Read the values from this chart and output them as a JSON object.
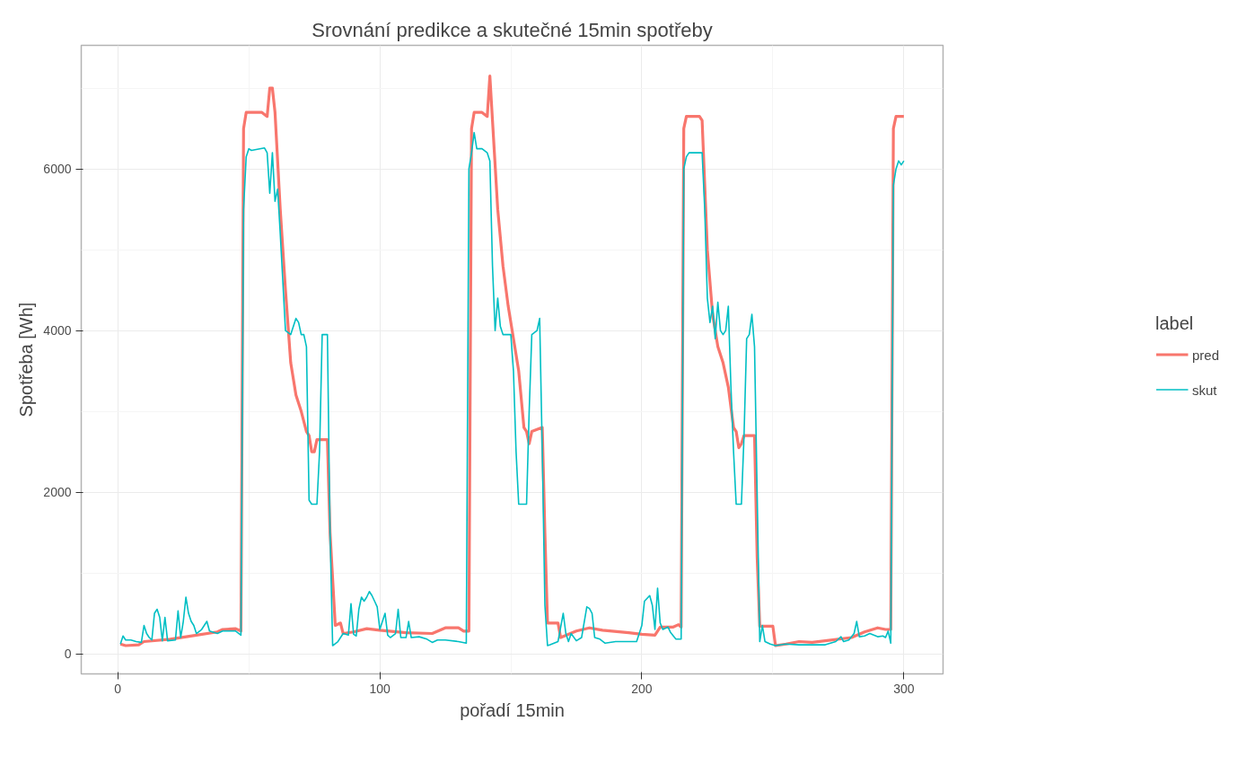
{
  "chart_data": {
    "type": "line",
    "title": "Srovnání predikce a skutečné 15min spotřeby",
    "xlabel": "pořadí 15min",
    "ylabel": "Spotřeba [Wh]",
    "legend_title": "label",
    "xlim": [
      -13.95,
      314.95
    ],
    "ylim": [
      -250,
      7530
    ],
    "xticks": [
      0,
      100,
      200,
      300
    ],
    "yticks": [
      0,
      2000,
      4000,
      6000
    ],
    "grid": true,
    "legend": "right",
    "series": [
      {
        "name": "pred",
        "color": "#f8766d",
        "x": [
          1,
          3,
          8,
          10,
          20,
          30,
          38,
          40,
          45,
          47,
          48,
          49,
          55,
          57,
          58,
          59,
          60,
          62,
          64,
          66,
          68,
          70,
          72,
          73,
          74,
          75,
          76,
          80,
          81,
          83,
          85,
          86,
          90,
          95,
          100,
          110,
          120,
          125,
          130,
          132,
          134,
          135,
          136,
          139,
          141,
          142,
          143,
          145,
          147,
          149,
          151,
          153,
          155,
          156,
          157,
          158,
          162,
          163,
          164,
          168,
          169,
          175,
          180,
          185,
          195,
          200,
          205,
          207,
          210,
          212,
          214,
          215,
          216,
          217,
          222,
          223,
          225,
          227,
          229,
          231,
          233,
          235,
          236,
          237,
          238,
          239,
          243,
          244,
          245,
          250,
          251,
          255,
          260,
          265,
          270,
          280,
          285,
          290,
          293,
          295,
          296,
          297,
          300
        ],
        "values": [
          120,
          100,
          110,
          150,
          180,
          230,
          270,
          300,
          310,
          280,
          6500,
          6700,
          6700,
          6650,
          7000,
          7000,
          6700,
          5500,
          4500,
          3600,
          3200,
          3000,
          2750,
          2700,
          2500,
          2500,
          2650,
          2650,
          1500,
          350,
          380,
          250,
          270,
          310,
          290,
          260,
          250,
          320,
          320,
          280,
          280,
          6500,
          6700,
          6700,
          6650,
          7150,
          6600,
          5500,
          4800,
          4300,
          3900,
          3500,
          2800,
          2750,
          2600,
          2750,
          2800,
          1500,
          380,
          380,
          200,
          280,
          320,
          290,
          260,
          240,
          230,
          330,
          330,
          330,
          360,
          330,
          6500,
          6650,
          6650,
          6600,
          5000,
          4200,
          3800,
          3600,
          3300,
          2800,
          2750,
          2550,
          2600,
          2700,
          2700,
          1200,
          340,
          340,
          100,
          120,
          150,
          140,
          160,
          200,
          270,
          320,
          300,
          300,
          6500,
          6650,
          6650
        ]
      },
      {
        "name": "skut",
        "color": "#00bfc4",
        "x": [
          1,
          2,
          3,
          5,
          7,
          9,
          10,
          11,
          12,
          13,
          14,
          15,
          16,
          17,
          18,
          19,
          22,
          23,
          24,
          25,
          26,
          27,
          28,
          29,
          30,
          32,
          34,
          35,
          38,
          40,
          45,
          47,
          48,
          49,
          50,
          51,
          56,
          57,
          58,
          59,
          60,
          61,
          62,
          64,
          66,
          68,
          69,
          70,
          71,
          72,
          73,
          74,
          76,
          77,
          78,
          80,
          81,
          82,
          84,
          86,
          88,
          89,
          90,
          91,
          92,
          93,
          94,
          95,
          96,
          97,
          98,
          99,
          100,
          102,
          103,
          104,
          106,
          107,
          108,
          110,
          111,
          112,
          115,
          118,
          120,
          122,
          125,
          130,
          133,
          134,
          135,
          136,
          137,
          139,
          141,
          142,
          143,
          144,
          145,
          146,
          147,
          150,
          151,
          152,
          153,
          156,
          157,
          158,
          160,
          161,
          162,
          163,
          164,
          165,
          168,
          170,
          171,
          172,
          173,
          175,
          177,
          179,
          180,
          181,
          182,
          184,
          186,
          190,
          195,
          198,
          200,
          201,
          203,
          204,
          205,
          206,
          207,
          208,
          210,
          211,
          213,
          215,
          216,
          217,
          218,
          222,
          223,
          224,
          225,
          226,
          227,
          228,
          229,
          230,
          231,
          232,
          233,
          234,
          235,
          236,
          238,
          239,
          240,
          241,
          242,
          243,
          244,
          245,
          246,
          247,
          249,
          251,
          255,
          260,
          270,
          274,
          276,
          277,
          279,
          281,
          282,
          283,
          285,
          287,
          290,
          292,
          293,
          294,
          295,
          296,
          297,
          298,
          299,
          300
        ],
        "values": [
          120,
          220,
          170,
          170,
          150,
          140,
          350,
          250,
          200,
          170,
          500,
          550,
          450,
          160,
          450,
          160,
          170,
          530,
          200,
          400,
          700,
          500,
          400,
          350,
          250,
          300,
          400,
          280,
          250,
          280,
          280,
          230,
          5500,
          6150,
          6250,
          6230,
          6260,
          6200,
          5700,
          6200,
          5600,
          5750,
          5200,
          4000,
          3950,
          4150,
          4100,
          3950,
          3950,
          3800,
          1900,
          1850,
          1850,
          2500,
          3950,
          3950,
          1500,
          100,
          150,
          250,
          230,
          620,
          240,
          220,
          550,
          700,
          650,
          700,
          770,
          720,
          650,
          580,
          300,
          500,
          230,
          200,
          250,
          550,
          200,
          200,
          400,
          200,
          210,
          180,
          140,
          170,
          170,
          150,
          130,
          6000,
          6200,
          6450,
          6250,
          6250,
          6200,
          6100,
          4800,
          4000,
          4400,
          4050,
          3950,
          3950,
          3500,
          2500,
          1850,
          1850,
          3000,
          3950,
          4000,
          4150,
          2500,
          600,
          100,
          110,
          150,
          500,
          250,
          150,
          250,
          160,
          200,
          580,
          560,
          500,
          200,
          180,
          130,
          150,
          150,
          150,
          350,
          650,
          720,
          600,
          300,
          810,
          380,
          300,
          330,
          260,
          180,
          180,
          6000,
          6150,
          6200,
          6200,
          6200,
          5500,
          4400,
          4100,
          4300,
          3900,
          4350,
          4000,
          3950,
          4000,
          4300,
          3300,
          2500,
          1850,
          1850,
          2700,
          3900,
          3950,
          4200,
          3800,
          2000,
          150,
          350,
          150,
          120,
          100,
          120,
          110,
          110,
          150,
          210,
          150,
          170,
          250,
          400,
          210,
          220,
          250,
          210,
          220,
          200,
          280,
          130,
          5800,
          6000,
          6100,
          6050,
          6100
        ]
      }
    ]
  }
}
